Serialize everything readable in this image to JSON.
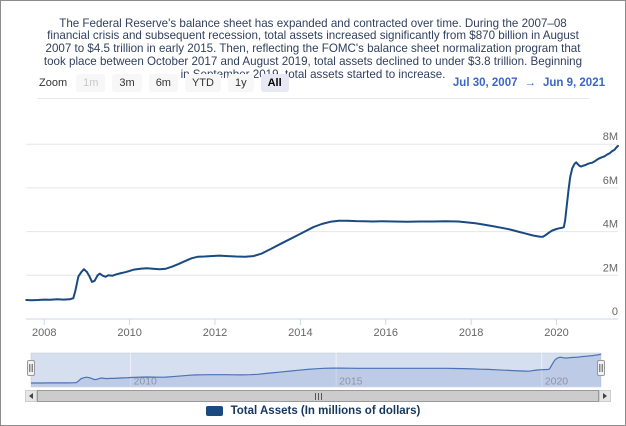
{
  "description": "The Federal Reserve's balance sheet has expanded and contracted over time. During the 2007–08 financial crisis and subsequent recession, total assets increased significantly from $870 billion in August 2007 to $4.5 trillion in early 2015. Then, reflecting the FOMC's balance sheet normalization program that took place between October 2017 and August 2019, total assets declined to under $3.8 trillion. Beginning in September 2019, total assets started to increase.",
  "range_selector": {
    "zoom_label": "Zoom",
    "buttons": [
      {
        "label": "1m",
        "state": "disabled"
      },
      {
        "label": "3m",
        "state": "normal"
      },
      {
        "label": "6m",
        "state": "normal"
      },
      {
        "label": "YTD",
        "state": "normal"
      },
      {
        "label": "1y",
        "state": "normal"
      },
      {
        "label": "All",
        "state": "selected"
      }
    ],
    "from_date": "Jul 30, 2007",
    "arrow": "→",
    "to_date": "Jun 9, 2021"
  },
  "chart_data": {
    "type": "line",
    "title": "",
    "xlabel": "",
    "ylabel": "Total Assets (In millions of dollars)",
    "units": "millions of dollars",
    "grid": true,
    "legend_position": "bottom",
    "xlim": [
      2007.58,
      2021.44
    ],
    "ylim": [
      0,
      8.8
    ],
    "x_ticks": [
      2008,
      2010,
      2012,
      2014,
      2016,
      2018,
      2020
    ],
    "y_ticks": [
      {
        "value": 0,
        "label": "0"
      },
      {
        "value": 2,
        "label": "2M"
      },
      {
        "value": 4,
        "label": "4M"
      },
      {
        "value": 6,
        "label": "6M"
      },
      {
        "value": 8,
        "label": "8M"
      }
    ],
    "series": [
      {
        "name": "Total Assets (In millions of dollars)",
        "color": "#1a4a80",
        "points": [
          [
            2007.58,
            0.87
          ],
          [
            2007.7,
            0.86
          ],
          [
            2007.85,
            0.87
          ],
          [
            2008.0,
            0.89
          ],
          [
            2008.15,
            0.88
          ],
          [
            2008.3,
            0.9
          ],
          [
            2008.45,
            0.89
          ],
          [
            2008.6,
            0.9
          ],
          [
            2008.68,
            0.95
          ],
          [
            2008.73,
            1.3
          ],
          [
            2008.8,
            1.95
          ],
          [
            2008.87,
            2.15
          ],
          [
            2008.93,
            2.28
          ],
          [
            2009.0,
            2.15
          ],
          [
            2009.06,
            1.95
          ],
          [
            2009.12,
            1.7
          ],
          [
            2009.18,
            1.75
          ],
          [
            2009.25,
            2.0
          ],
          [
            2009.3,
            2.08
          ],
          [
            2009.37,
            1.98
          ],
          [
            2009.44,
            1.93
          ],
          [
            2009.5,
            2.0
          ],
          [
            2009.6,
            1.98
          ],
          [
            2009.7,
            2.05
          ],
          [
            2009.8,
            2.1
          ],
          [
            2009.9,
            2.14
          ],
          [
            2010.0,
            2.2
          ],
          [
            2010.1,
            2.26
          ],
          [
            2010.25,
            2.3
          ],
          [
            2010.4,
            2.32
          ],
          [
            2010.55,
            2.3
          ],
          [
            2010.7,
            2.28
          ],
          [
            2010.85,
            2.3
          ],
          [
            2011.0,
            2.4
          ],
          [
            2011.15,
            2.52
          ],
          [
            2011.3,
            2.65
          ],
          [
            2011.45,
            2.78
          ],
          [
            2011.6,
            2.85
          ],
          [
            2011.75,
            2.86
          ],
          [
            2011.9,
            2.88
          ],
          [
            2012.1,
            2.9
          ],
          [
            2012.3,
            2.88
          ],
          [
            2012.5,
            2.86
          ],
          [
            2012.7,
            2.85
          ],
          [
            2012.9,
            2.88
          ],
          [
            2013.1,
            3.0
          ],
          [
            2013.3,
            3.2
          ],
          [
            2013.5,
            3.4
          ],
          [
            2013.7,
            3.6
          ],
          [
            2013.9,
            3.8
          ],
          [
            2014.1,
            4.0
          ],
          [
            2014.3,
            4.2
          ],
          [
            2014.5,
            4.35
          ],
          [
            2014.7,
            4.45
          ],
          [
            2014.9,
            4.5
          ],
          [
            2015.1,
            4.5
          ],
          [
            2015.3,
            4.48
          ],
          [
            2015.5,
            4.47
          ],
          [
            2015.7,
            4.46
          ],
          [
            2015.9,
            4.47
          ],
          [
            2016.2,
            4.46
          ],
          [
            2016.5,
            4.45
          ],
          [
            2016.8,
            4.46
          ],
          [
            2017.1,
            4.46
          ],
          [
            2017.4,
            4.47
          ],
          [
            2017.7,
            4.46
          ],
          [
            2017.9,
            4.42
          ],
          [
            2018.1,
            4.38
          ],
          [
            2018.3,
            4.32
          ],
          [
            2018.5,
            4.25
          ],
          [
            2018.7,
            4.18
          ],
          [
            2018.9,
            4.1
          ],
          [
            2019.1,
            4.0
          ],
          [
            2019.3,
            3.9
          ],
          [
            2019.45,
            3.82
          ],
          [
            2019.6,
            3.77
          ],
          [
            2019.68,
            3.76
          ],
          [
            2019.75,
            3.85
          ],
          [
            2019.82,
            3.95
          ],
          [
            2019.9,
            4.05
          ],
          [
            2020.0,
            4.12
          ],
          [
            2020.06,
            4.15
          ],
          [
            2020.12,
            4.17
          ],
          [
            2020.17,
            4.2
          ],
          [
            2020.2,
            4.5
          ],
          [
            2020.24,
            5.2
          ],
          [
            2020.28,
            5.9
          ],
          [
            2020.32,
            6.5
          ],
          [
            2020.37,
            6.9
          ],
          [
            2020.42,
            7.1
          ],
          [
            2020.46,
            7.17
          ],
          [
            2020.5,
            7.08
          ],
          [
            2020.54,
            7.0
          ],
          [
            2020.58,
            6.98
          ],
          [
            2020.63,
            7.02
          ],
          [
            2020.68,
            7.05
          ],
          [
            2020.73,
            7.1
          ],
          [
            2020.78,
            7.13
          ],
          [
            2020.83,
            7.15
          ],
          [
            2020.88,
            7.2
          ],
          [
            2020.94,
            7.28
          ],
          [
            2021.0,
            7.35
          ],
          [
            2021.06,
            7.4
          ],
          [
            2021.12,
            7.44
          ],
          [
            2021.18,
            7.52
          ],
          [
            2021.24,
            7.58
          ],
          [
            2021.3,
            7.68
          ],
          [
            2021.36,
            7.75
          ],
          [
            2021.4,
            7.85
          ],
          [
            2021.44,
            7.92
          ]
        ]
      }
    ]
  },
  "navigator": {
    "x_labels": [
      {
        "year": 2010,
        "label": "2010"
      },
      {
        "year": 2015,
        "label": "2015"
      },
      {
        "year": 2020,
        "label": "2020"
      }
    ],
    "mask_color": "#d6dff0",
    "line_color": "#4a72b5"
  },
  "legend": {
    "swatch_color": "#1a4a80",
    "label": "Total Assets (In millions of dollars)"
  },
  "colors": {
    "gridline": "#e6e6e6",
    "axis_line": "#ccd6eb",
    "axis_label": "#666666",
    "date_range": "#3a66c8"
  }
}
